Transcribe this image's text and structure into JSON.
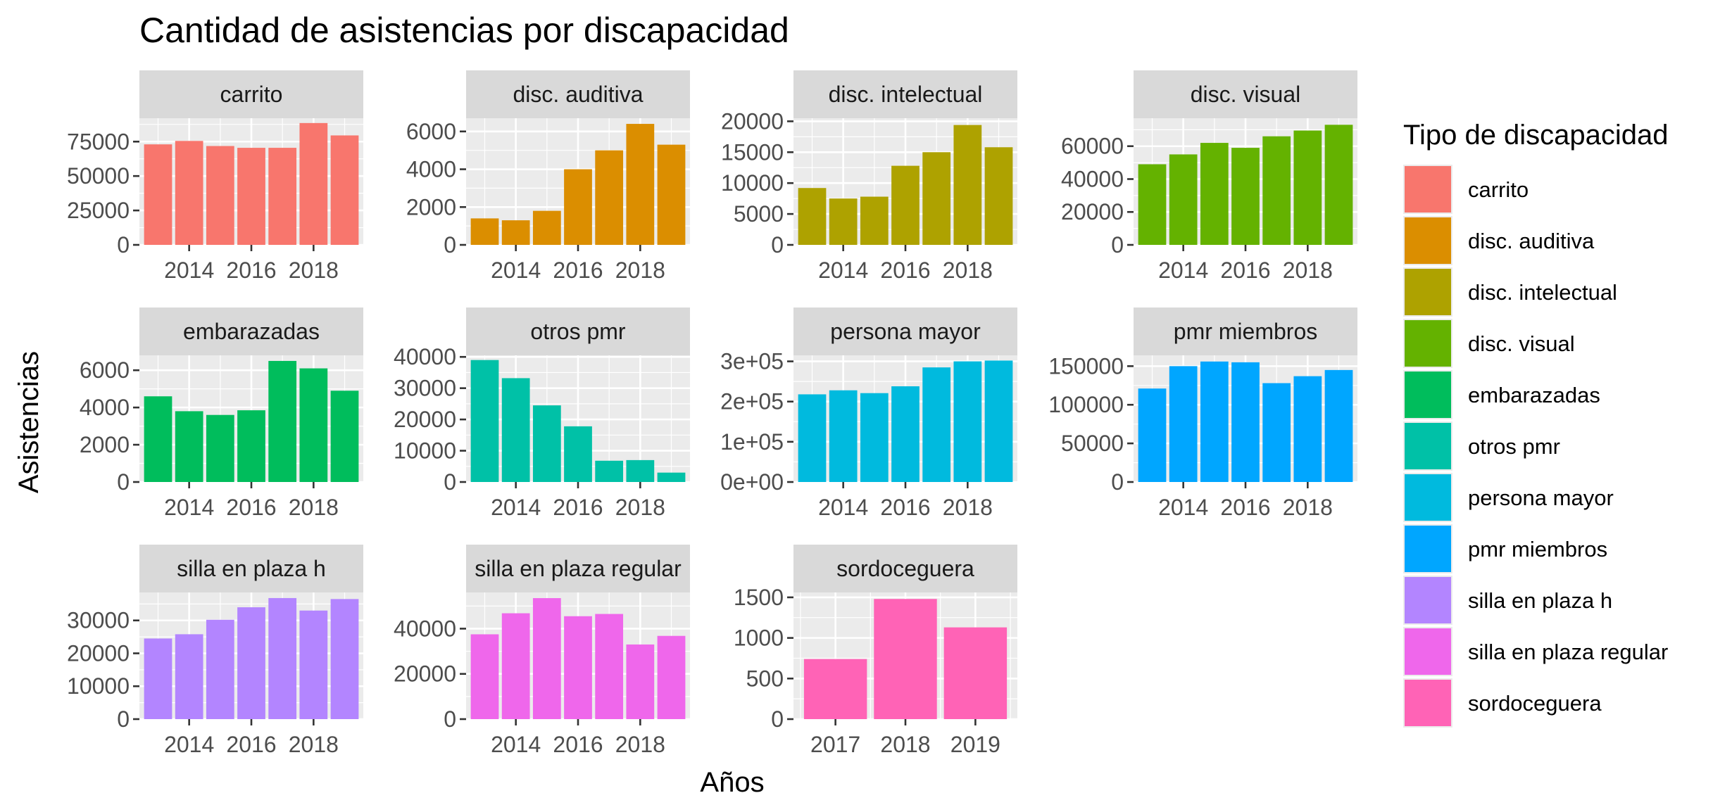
{
  "chart_data": {
    "type": "bar",
    "title": "Cantidad de asistencias por discapacidad",
    "xlabel": "Años",
    "ylabel": "Asistencias",
    "legend": {
      "title": "Tipo de discapacidad",
      "position": "right"
    },
    "grid": true,
    "panels": [
      {
        "name": "carrito",
        "color": "#F8766D",
        "x": [
          2013,
          2014,
          2015,
          2016,
          2017,
          2018,
          2019
        ],
        "values": [
          73000,
          75500,
          71800,
          70500,
          70500,
          88500,
          79500
        ],
        "ylim": [
          0,
          92000
        ],
        "yticks": [
          0,
          25000,
          50000,
          75000
        ],
        "ytick_labels": [
          "0",
          "25000",
          "50000",
          "75000"
        ],
        "xlim": [
          2012.4,
          2019.6
        ],
        "xticks": [
          2014,
          2016,
          2018
        ],
        "xtick_labels": [
          "2014",
          "2016",
          "2018"
        ]
      },
      {
        "name": "disc. auditiva",
        "color": "#DB8E00",
        "x": [
          2013,
          2014,
          2015,
          2016,
          2017,
          2018,
          2019
        ],
        "values": [
          1400,
          1300,
          1800,
          4000,
          5000,
          6400,
          5300
        ],
        "ylim": [
          0,
          6700
        ],
        "yticks": [
          0,
          2000,
          4000,
          6000
        ],
        "ytick_labels": [
          "0",
          "2000",
          "4000",
          "6000"
        ],
        "xlim": [
          2012.4,
          2019.6
        ],
        "xticks": [
          2014,
          2016,
          2018
        ],
        "xtick_labels": [
          "2014",
          "2016",
          "2018"
        ]
      },
      {
        "name": "disc. intelectual",
        "color": "#AEA200",
        "x": [
          2013,
          2014,
          2015,
          2016,
          2017,
          2018,
          2019
        ],
        "values": [
          9200,
          7500,
          7800,
          12800,
          15000,
          19400,
          15800
        ],
        "ylim": [
          0,
          20500
        ],
        "yticks": [
          0,
          5000,
          10000,
          15000,
          20000
        ],
        "ytick_labels": [
          "0",
          "5000",
          "10000",
          "15000",
          "20000"
        ],
        "xlim": [
          2012.4,
          2019.6
        ],
        "xticks": [
          2014,
          2016,
          2018
        ],
        "xtick_labels": [
          "2014",
          "2016",
          "2018"
        ]
      },
      {
        "name": "disc. visual",
        "color": "#64B200",
        "x": [
          2013,
          2014,
          2015,
          2016,
          2017,
          2018,
          2019
        ],
        "values": [
          49000,
          55000,
          62000,
          59000,
          66000,
          69500,
          73000
        ],
        "ylim": [
          0,
          77000
        ],
        "yticks": [
          0,
          20000,
          40000,
          60000
        ],
        "ytick_labels": [
          "0",
          "20000",
          "40000",
          "60000"
        ],
        "xlim": [
          2012.4,
          2019.6
        ],
        "xticks": [
          2014,
          2016,
          2018
        ],
        "xtick_labels": [
          "2014",
          "2016",
          "2018"
        ]
      },
      {
        "name": "embarazadas",
        "color": "#00BD5C",
        "x": [
          2013,
          2014,
          2015,
          2016,
          2017,
          2018,
          2019
        ],
        "values": [
          4600,
          3800,
          3600,
          3850,
          6500,
          6100,
          4900
        ],
        "ylim": [
          0,
          6800
        ],
        "yticks": [
          0,
          2000,
          4000,
          6000
        ],
        "ytick_labels": [
          "0",
          "2000",
          "4000",
          "6000"
        ],
        "xlim": [
          2012.4,
          2019.6
        ],
        "xticks": [
          2014,
          2016,
          2018
        ],
        "xtick_labels": [
          "2014",
          "2016",
          "2018"
        ]
      },
      {
        "name": "otros pmr",
        "color": "#00C1A7",
        "x": [
          2013,
          2014,
          2015,
          2016,
          2017,
          2018,
          2019
        ],
        "values": [
          39000,
          33200,
          24500,
          17800,
          6800,
          7000,
          3000
        ],
        "ylim": [
          0,
          40500
        ],
        "yticks": [
          0,
          10000,
          20000,
          30000,
          40000
        ],
        "ytick_labels": [
          "0",
          "10000",
          "20000",
          "30000",
          "40000"
        ],
        "xlim": [
          2012.4,
          2019.6
        ],
        "xticks": [
          2014,
          2016,
          2018
        ],
        "xtick_labels": [
          "2014",
          "2016",
          "2018"
        ]
      },
      {
        "name": "persona mayor",
        "color": "#00BADE",
        "x": [
          2013,
          2014,
          2015,
          2016,
          2017,
          2018,
          2019
        ],
        "values": [
          218000,
          228000,
          221000,
          238000,
          285000,
          300000,
          302000
        ],
        "ylim": [
          0,
          315000
        ],
        "yticks": [
          0,
          100000,
          200000,
          300000
        ],
        "ytick_labels": [
          "0e+00",
          "1e+05",
          "2e+05",
          "3e+05"
        ],
        "xlim": [
          2012.4,
          2019.6
        ],
        "xticks": [
          2014,
          2016,
          2018
        ],
        "xtick_labels": [
          "2014",
          "2016",
          "2018"
        ]
      },
      {
        "name": "pmr miembros",
        "color": "#00A6FF",
        "x": [
          2013,
          2014,
          2015,
          2016,
          2017,
          2018,
          2019
        ],
        "values": [
          121000,
          150000,
          156000,
          155000,
          128000,
          137000,
          145000
        ],
        "ylim": [
          0,
          164000
        ],
        "yticks": [
          0,
          50000,
          100000,
          150000
        ],
        "ytick_labels": [
          "0",
          "50000",
          "100000",
          "150000"
        ],
        "xlim": [
          2012.4,
          2019.6
        ],
        "xticks": [
          2014,
          2016,
          2018
        ],
        "xtick_labels": [
          "2014",
          "2016",
          "2018"
        ]
      },
      {
        "name": "silla en plaza h",
        "color": "#B385FF",
        "x": [
          2013,
          2014,
          2015,
          2016,
          2017,
          2018,
          2019
        ],
        "values": [
          24500,
          25800,
          30200,
          34000,
          36800,
          33000,
          36500
        ],
        "ylim": [
          0,
          38500
        ],
        "yticks": [
          0,
          10000,
          20000,
          30000
        ],
        "ytick_labels": [
          "0",
          "10000",
          "20000",
          "30000"
        ],
        "xlim": [
          2012.4,
          2019.6
        ],
        "xticks": [
          2014,
          2016,
          2018
        ],
        "xtick_labels": [
          "2014",
          "2016",
          "2018"
        ]
      },
      {
        "name": "silla en plaza regular",
        "color": "#EF67EB",
        "x": [
          2013,
          2014,
          2015,
          2016,
          2017,
          2018,
          2019
        ],
        "values": [
          37500,
          46800,
          53500,
          45500,
          46500,
          33000,
          36800
        ],
        "ylim": [
          0,
          56000
        ],
        "yticks": [
          0,
          20000,
          40000
        ],
        "ytick_labels": [
          "0",
          "20000",
          "40000"
        ],
        "xlim": [
          2012.4,
          2019.6
        ],
        "xticks": [
          2014,
          2016,
          2018
        ],
        "xtick_labels": [
          "2014",
          "2016",
          "2018"
        ]
      },
      {
        "name": "sordoceguera",
        "color": "#FF63B6",
        "x": [
          2017,
          2018,
          2019
        ],
        "values": [
          740,
          1480,
          1130
        ],
        "ylim": [
          0,
          1560
        ],
        "yticks": [
          0,
          500,
          1000,
          1500
        ],
        "ytick_labels": [
          "0",
          "500",
          "1000",
          "1500"
        ],
        "xlim": [
          2016.4,
          2019.6
        ],
        "xticks": [
          2017,
          2018,
          2019
        ],
        "xtick_labels": [
          "2017",
          "2018",
          "2019"
        ]
      }
    ]
  }
}
